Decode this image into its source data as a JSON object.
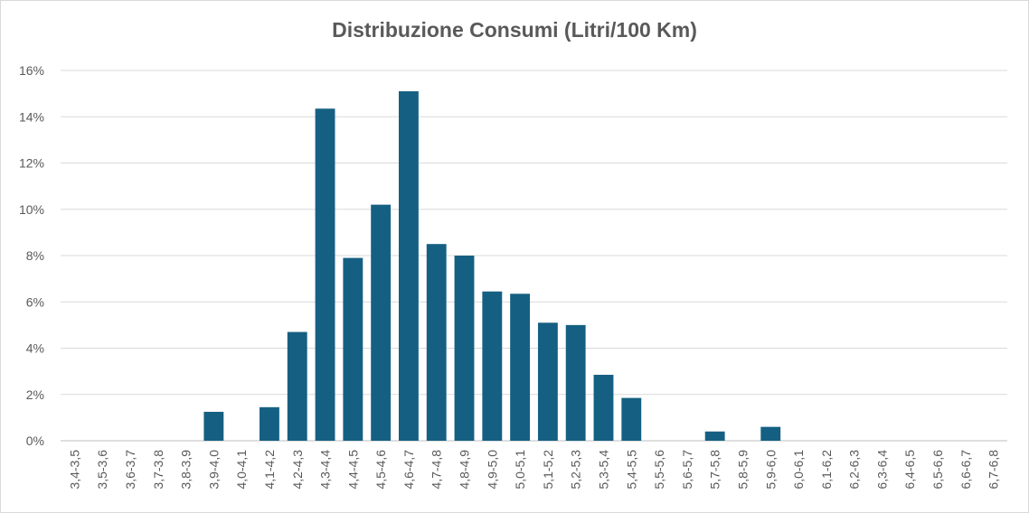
{
  "chart_data": {
    "type": "bar",
    "title": "Distribuzione Consumi (Litri/100 Km)",
    "xlabel": "",
    "ylabel": "",
    "ylim": [
      0,
      16
    ],
    "y_ticks": [
      "0%",
      "2%",
      "4%",
      "6%",
      "8%",
      "10%",
      "12%",
      "14%",
      "16%"
    ],
    "y_tick_values": [
      0,
      2,
      4,
      6,
      8,
      10,
      12,
      14,
      16
    ],
    "grid": true,
    "legend": "none",
    "bar_color": "#156082",
    "categories": [
      "3,4-3,5",
      "3,5-3,6",
      "3,6-3,7",
      "3,7-3,8",
      "3,8-3,9",
      "3,9-4,0",
      "4,0-4,1",
      "4,1-4,2",
      "4,2-4,3",
      "4,3-4,4",
      "4,4-4,5",
      "4,5-4,6",
      "4,6-4,7",
      "4,7-4,8",
      "4,8-4,9",
      "4,9-5,0",
      "5,0-5,1",
      "5,1-5,2",
      "5,2-5,3",
      "5,3-5,4",
      "5,4-5,5",
      "5,5-5,6",
      "5,6-5,7",
      "5,7-5,8",
      "5,8-5,9",
      "5,9-6,0",
      "6,0-6,1",
      "6,1-6,2",
      "6,2-6,3",
      "6,3-6,4",
      "6,4-6,5",
      "6,5-6,6",
      "6,6-6,7",
      "6,7-6,8"
    ],
    "values": [
      0,
      0,
      0,
      0,
      0,
      1.25,
      0,
      1.45,
      4.7,
      14.35,
      7.9,
      10.2,
      15.1,
      8.5,
      8.0,
      6.45,
      6.35,
      5.1,
      5.0,
      2.85,
      1.85,
      0,
      0,
      0.4,
      0,
      0.6,
      0,
      0,
      0,
      0,
      0,
      0,
      0,
      0
    ]
  }
}
